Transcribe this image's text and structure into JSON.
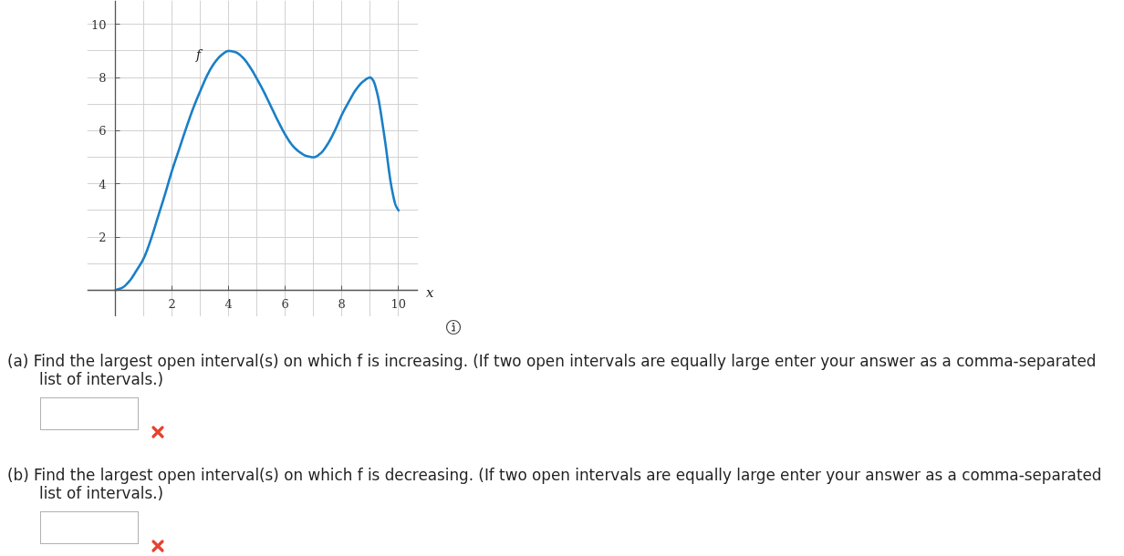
{
  "chart_data": {
    "type": "line",
    "xlabel": "x",
    "x": [
      0,
      0.25,
      0.5,
      0.75,
      1,
      1.25,
      1.5,
      1.75,
      2,
      2.25,
      2.5,
      2.75,
      3,
      3.25,
      3.5,
      3.75,
      4,
      4.25,
      4.5,
      4.75,
      5,
      5.25,
      5.5,
      5.75,
      6,
      6.25,
      6.5,
      6.75,
      7,
      7.25,
      7.5,
      7.75,
      8,
      8.25,
      8.5,
      8.75,
      9,
      9.1,
      9.25,
      9.5,
      9.75,
      9.9,
      10
    ],
    "series": [
      {
        "name": "f",
        "color": "#1a7fc7",
        "values": [
          0,
          0.1,
          0.35,
          0.75,
          1.2,
          1.9,
          2.75,
          3.6,
          4.5,
          5.3,
          6.1,
          6.85,
          7.5,
          8.1,
          8.55,
          8.85,
          9,
          8.95,
          8.75,
          8.4,
          7.95,
          7.45,
          6.9,
          6.35,
          5.85,
          5.45,
          5.2,
          5.05,
          5,
          5.15,
          5.5,
          6,
          6.6,
          7.1,
          7.55,
          7.85,
          8,
          7.9,
          7.4,
          5.8,
          3.9,
          3.2,
          3
        ]
      }
    ],
    "xlim": [
      -1,
      10.7
    ],
    "ylim": [
      -1,
      10.9
    ],
    "xticks": [
      {
        "value": 1,
        "label": null
      },
      2,
      {
        "value": 3,
        "label": null
      },
      4,
      {
        "value": 5,
        "label": null
      },
      6,
      {
        "value": 7,
        "label": null
      },
      8,
      {
        "value": 9,
        "label": null
      },
      10
    ],
    "yticks": [
      {
        "value": 1,
        "label": null
      },
      2,
      {
        "value": 3,
        "label": null
      },
      4,
      {
        "value": 5,
        "label": null
      },
      6,
      {
        "value": 7,
        "label": null
      },
      8,
      {
        "value": 9,
        "label": null
      },
      10
    ],
    "grid": true,
    "line_style": "solid",
    "annotations": [
      "(a) Find the largest open interval(s) on which f is increasing. (If two open intervals are equally large enter your answer as a comma-separated list of intervals.)",
      "(b) Find the largest open interval(s) on which f is decreasing. (If two open intervals are equally large enter your answer as a comma-separated list of intervals.)"
    ]
  }
}
